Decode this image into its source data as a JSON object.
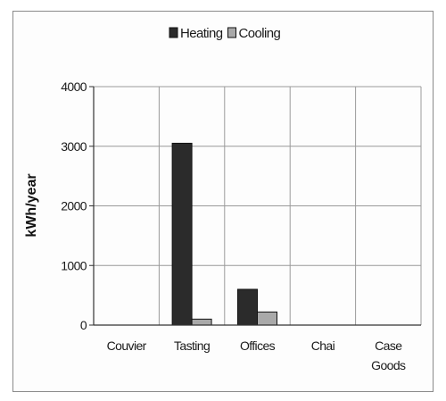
{
  "chart_data": {
    "type": "bar",
    "categories": [
      [
        "Couvier"
      ],
      [
        "Tasting"
      ],
      [
        "Offices"
      ],
      [
        "Chai"
      ],
      [
        "Case",
        "Goods"
      ]
    ],
    "series": [
      {
        "name": "Heating",
        "values": [
          0,
          3050,
          600,
          0,
          0
        ],
        "color": "#2b2b2b"
      },
      {
        "name": "Cooling",
        "values": [
          0,
          100,
          220,
          0,
          0
        ],
        "color": "#a9a9a9"
      }
    ],
    "ylabel": "kWh/year",
    "ylim": [
      0,
      4000
    ],
    "yticks": [
      0,
      1000,
      2000,
      3000,
      4000
    ],
    "grid": true,
    "legend": "top"
  }
}
